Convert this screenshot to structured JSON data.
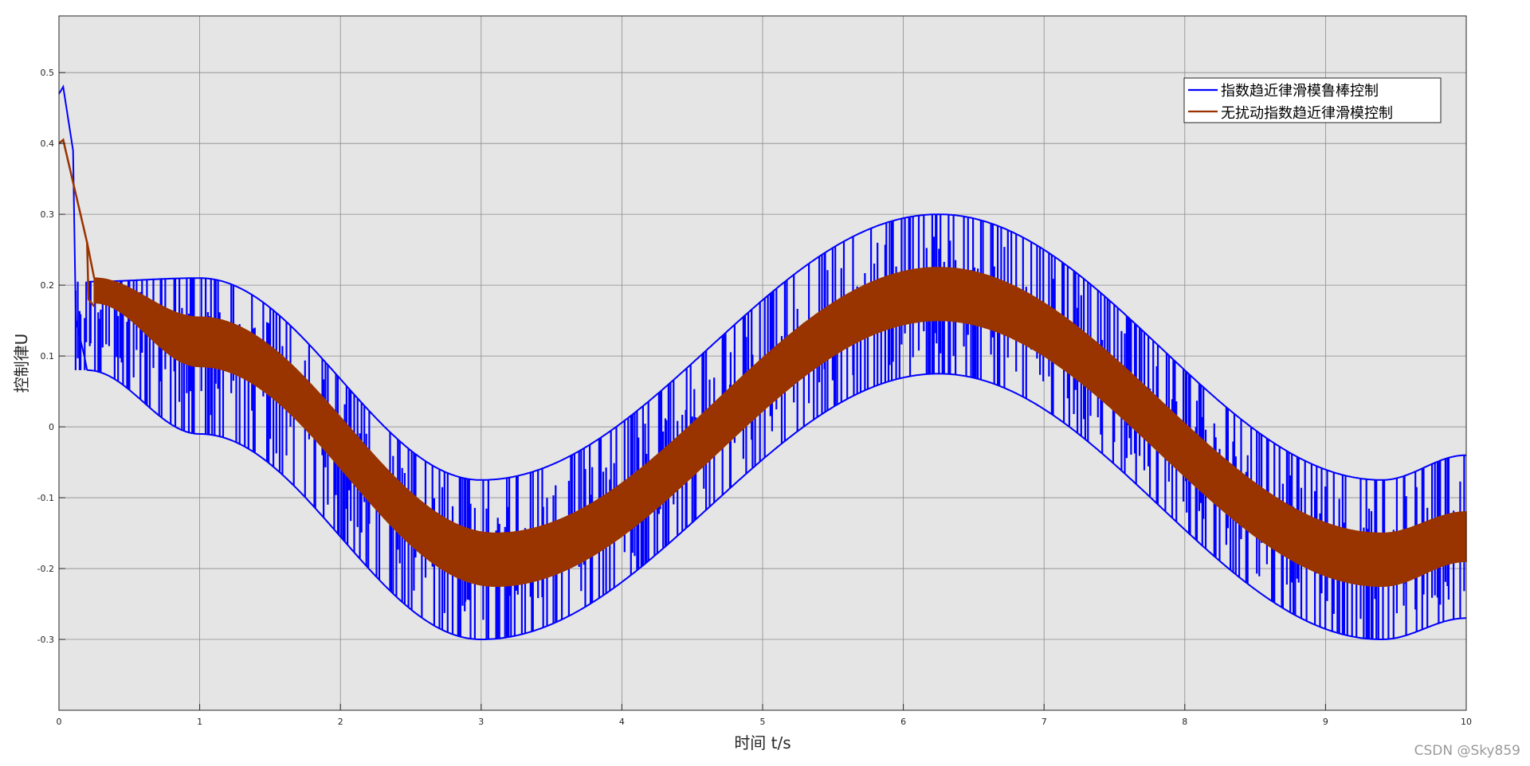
{
  "chart_data": {
    "type": "line",
    "xlabel": "时间 t/s",
    "ylabel": "控制律U",
    "xlim": [
      0,
      10
    ],
    "ylim": [
      -0.4,
      0.58
    ],
    "x_ticks": [
      0,
      1,
      2,
      3,
      4,
      5,
      6,
      7,
      8,
      9,
      10
    ],
    "y_ticks": [
      -0.3,
      -0.2,
      -0.1,
      0,
      0.1,
      0.2,
      0.3,
      0.4,
      0.5
    ],
    "y_tick_labels": [
      "-0.3",
      "-0.2",
      "-0.1",
      "0",
      "0.1",
      "0.2",
      "0.3",
      "0.4",
      "0.5"
    ],
    "x_tick_labels": [
      "0",
      "1",
      "2",
      "3",
      "4",
      "5",
      "6",
      "7",
      "8",
      "9",
      "10"
    ],
    "grid": true,
    "legend_position": "top-right",
    "series": [
      {
        "name": "指数趋近律滑模鲁棒控制",
        "color": "#0000ff",
        "style": "chattering switching band",
        "initial_values": [
          [
            0,
            0.47
          ],
          [
            0.03,
            0.48
          ],
          [
            0.1,
            0.39
          ]
        ],
        "envelope_upper_center": [
          [
            0.2,
            0.205
          ],
          [
            1,
            0.21
          ],
          [
            3,
            -0.075
          ],
          [
            6.25,
            0.3
          ],
          [
            9.4,
            -0.075
          ],
          [
            10,
            -0.04
          ]
        ],
        "envelope_lower_center": [
          [
            0.2,
            0.08
          ],
          [
            1,
            -0.01
          ],
          [
            3,
            -0.3
          ],
          [
            6.25,
            0.075
          ],
          [
            9.4,
            -0.3
          ],
          [
            10,
            -0.27
          ]
        ]
      },
      {
        "name": "无扰动指数趋近律滑模控制",
        "color": "#993300",
        "style": "dense oscillation band",
        "initial_values": [
          [
            0,
            0.4
          ],
          [
            0.03,
            0.405
          ],
          [
            0.2,
            0.26
          ]
        ],
        "band_upper": [
          [
            0.25,
            0.21
          ],
          [
            1,
            0.155
          ],
          [
            3.1,
            -0.15
          ],
          [
            6.25,
            0.225
          ],
          [
            9.4,
            -0.15
          ],
          [
            10,
            -0.12
          ]
        ],
        "band_lower": [
          [
            0.25,
            0.175
          ],
          [
            1,
            0.085
          ],
          [
            3.1,
            -0.225
          ],
          [
            6.25,
            0.15
          ],
          [
            9.4,
            -0.225
          ],
          [
            10,
            -0.19
          ]
        ]
      }
    ]
  },
  "watermark": "CSDN @Sky859",
  "colors": {
    "plot_background": "#e5e5e5",
    "grid": "#8c8c8c",
    "axes": "#262626"
  }
}
